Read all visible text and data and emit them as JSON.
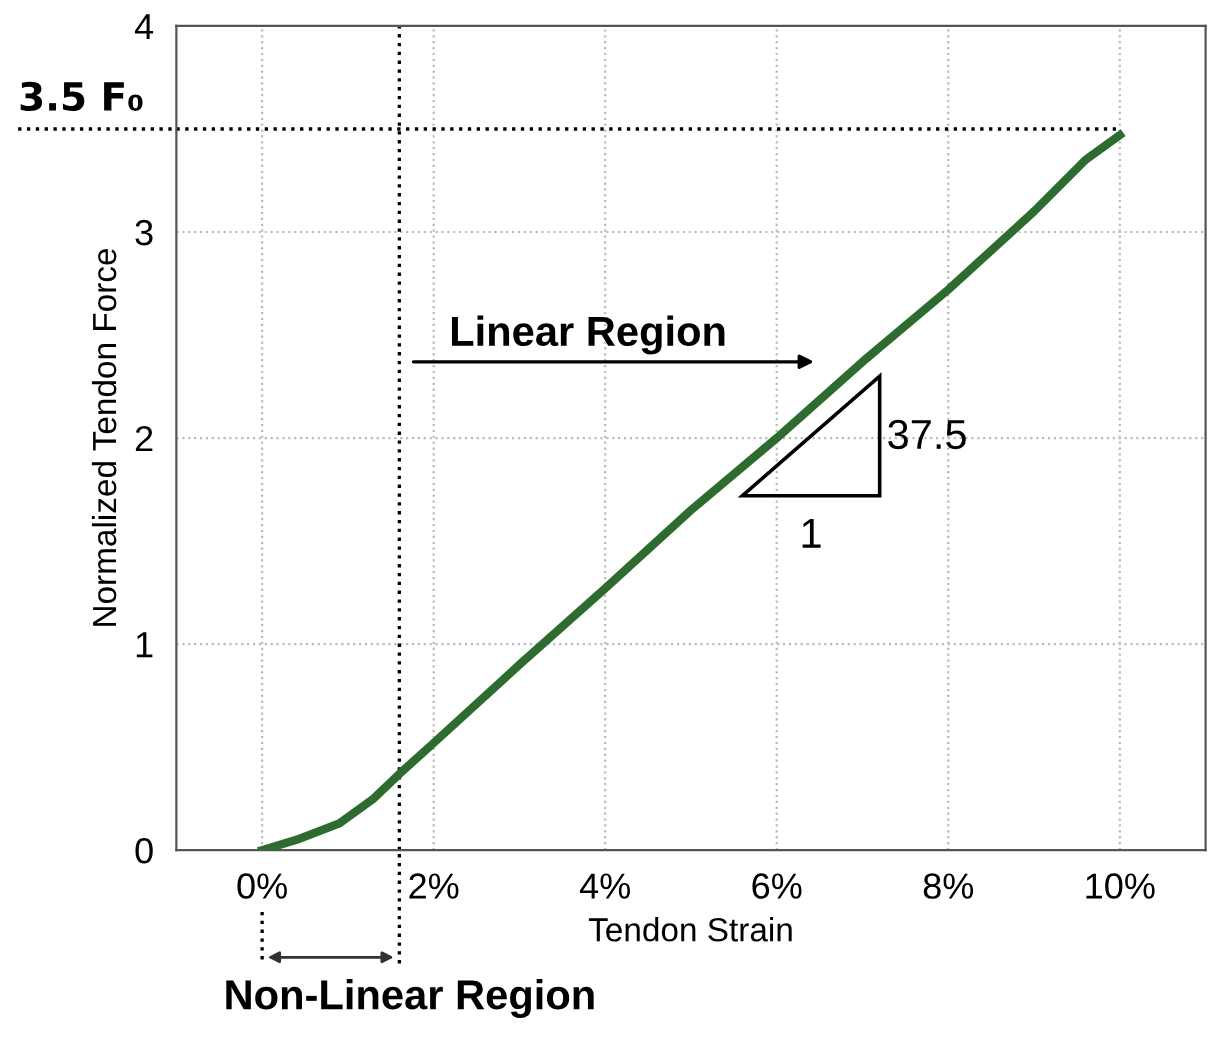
{
  "chart_data": {
    "type": "line",
    "xlabel": "Tendon Strain",
    "ylabel": "Normalized Tendon Force",
    "x": [
      0,
      0.4,
      0.9,
      1.3,
      1.6,
      2,
      3,
      4,
      5,
      6,
      7,
      8,
      9,
      9.6,
      10
    ],
    "series": [
      {
        "color": "#2e6b2e",
        "values": [
          0,
          0.05,
          0.13,
          0.25,
          0.37,
          0.52,
          0.9,
          1.27,
          1.65,
          2.0,
          2.37,
          2.72,
          3.1,
          3.35,
          3.47
        ]
      }
    ],
    "xlim": [
      -1,
      11
    ],
    "ylim": [
      0,
      4
    ],
    "xticks": [
      {
        "value": 0,
        "label": "0%"
      },
      {
        "value": 2,
        "label": "2%"
      },
      {
        "value": 4,
        "label": "4%"
      },
      {
        "value": 6,
        "label": "6%"
      },
      {
        "value": 8,
        "label": "8%"
      },
      {
        "value": 10,
        "label": "10%"
      }
    ],
    "yticks": [
      0,
      1,
      2,
      3,
      4
    ],
    "ref_lines": [
      {
        "axis": "y",
        "value": 3.5,
        "label": "3.5 F₀",
        "line_style": "dotted",
        "color": "#000000"
      },
      {
        "axis": "x",
        "value": 1.6,
        "line_style": "dotted",
        "color": "#000000"
      }
    ],
    "annotations": [
      "Linear Region",
      "Non-Linear Region",
      "37.5",
      "1"
    ],
    "grid": true,
    "marker": "none",
    "line_style": "solid"
  }
}
